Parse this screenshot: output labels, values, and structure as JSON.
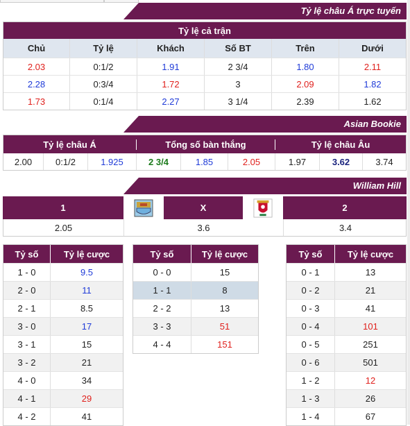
{
  "sections": {
    "asian_online": "Tỷ lệ châu Á trực tuyến",
    "asian_bookie": "Asian Bookie",
    "william_hill": "William Hill"
  },
  "full_match": {
    "title": "Tỷ lệ cả trận",
    "headers": [
      "Chủ",
      "Tỷ lệ",
      "Khách",
      "Số BT",
      "Trên",
      "Dưới"
    ],
    "rows": [
      [
        "2.03",
        "0:1/2",
        "1.91",
        "2 3/4",
        "1.80",
        "2.11"
      ],
      [
        "2.28",
        "0:3/4",
        "1.72",
        "3",
        "2.09",
        "1.82"
      ],
      [
        "1.73",
        "0:1/4",
        "2.27",
        "3 1/4",
        "2.39",
        "1.62"
      ]
    ],
    "colors": [
      [
        "red",
        "",
        "blue",
        "",
        "blue",
        "red"
      ],
      [
        "blue",
        "",
        "red",
        "",
        "red",
        "blue"
      ],
      [
        "red",
        "",
        "blue",
        "",
        "",
        ""
      ]
    ]
  },
  "bookie": {
    "headers": [
      "Tỷ lệ châu Á",
      "Tổng số bàn thắng",
      "Tỷ lệ châu Âu"
    ],
    "values": [
      "2.00",
      "0:1/2",
      "1.925",
      "2 3/4",
      "1.85",
      "2.05",
      "1.97",
      "3.62",
      "3.74"
    ]
  },
  "william": {
    "labels": [
      "1",
      "X",
      "2"
    ],
    "values": [
      "2.05",
      "3.6",
      "3.4"
    ],
    "home_logo": "manchester-city-logo",
    "away_logo": "liverpool-logo"
  },
  "score_tables": {
    "h_score": "Tỷ số",
    "h_odds": "Tỷ lệ cược",
    "left": [
      [
        "1 - 0",
        "9.5",
        "blue"
      ],
      [
        "2 - 0",
        "11",
        "blue"
      ],
      [
        "2 - 1",
        "8.5",
        ""
      ],
      [
        "3 - 0",
        "17",
        "blue"
      ],
      [
        "3 - 1",
        "15",
        ""
      ],
      [
        "3 - 2",
        "21",
        ""
      ],
      [
        "4 - 0",
        "34",
        ""
      ],
      [
        "4 - 1",
        "29",
        "red"
      ],
      [
        "4 - 2",
        "41",
        ""
      ]
    ],
    "middle": [
      [
        "0 - 0",
        "15",
        ""
      ],
      [
        "1 - 1",
        "8",
        ""
      ],
      [
        "2 - 2",
        "13",
        ""
      ],
      [
        "3 - 3",
        "51",
        "red"
      ],
      [
        "4 - 4",
        "151",
        "red"
      ]
    ],
    "right": [
      [
        "0 - 1",
        "13",
        ""
      ],
      [
        "0 - 2",
        "21",
        ""
      ],
      [
        "0 - 3",
        "41",
        ""
      ],
      [
        "0 - 4",
        "101",
        "red"
      ],
      [
        "0 - 5",
        "251",
        ""
      ],
      [
        "0 - 6",
        "501",
        ""
      ],
      [
        "1 - 2",
        "12",
        "red"
      ],
      [
        "1 - 3",
        "26",
        ""
      ],
      [
        "1 - 4",
        "67",
        ""
      ]
    ]
  }
}
